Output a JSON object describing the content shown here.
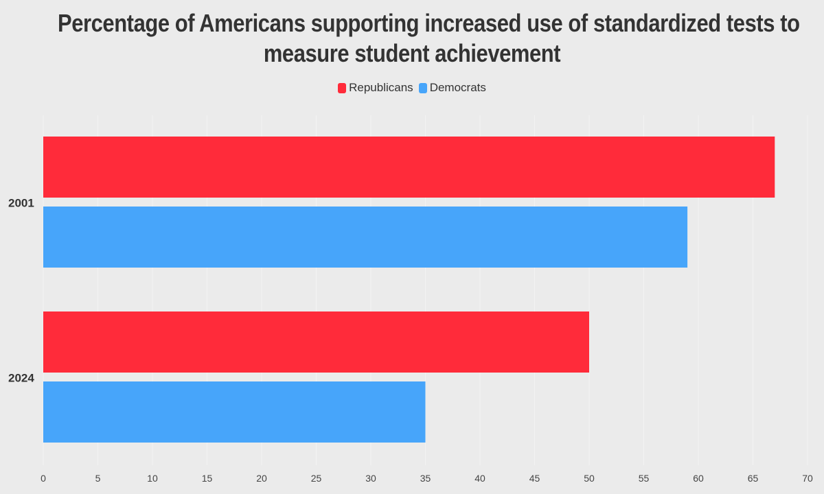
{
  "chart_data": {
    "type": "bar",
    "orientation": "horizontal",
    "title_lines": [
      "Percentage of Americans supporting increased use of standardized tests to",
      "measure student achievement"
    ],
    "categories": [
      "2001",
      "2024"
    ],
    "series": [
      {
        "name": "Republicans",
        "color": "#ff2b3a",
        "values": [
          67,
          50
        ]
      },
      {
        "name": "Democrats",
        "color": "#47a5fa",
        "values": [
          59,
          35
        ]
      }
    ],
    "xlim": [
      0,
      70
    ],
    "x_ticks": [
      0,
      5,
      10,
      15,
      20,
      25,
      30,
      35,
      40,
      45,
      50,
      55,
      60,
      65,
      70
    ],
    "grid": true,
    "legend_position": "top-center",
    "xlabel": "",
    "ylabel": ""
  },
  "colors": {
    "background": "#ebebeb",
    "grid": "#f3f3f3",
    "text": "#333333"
  }
}
